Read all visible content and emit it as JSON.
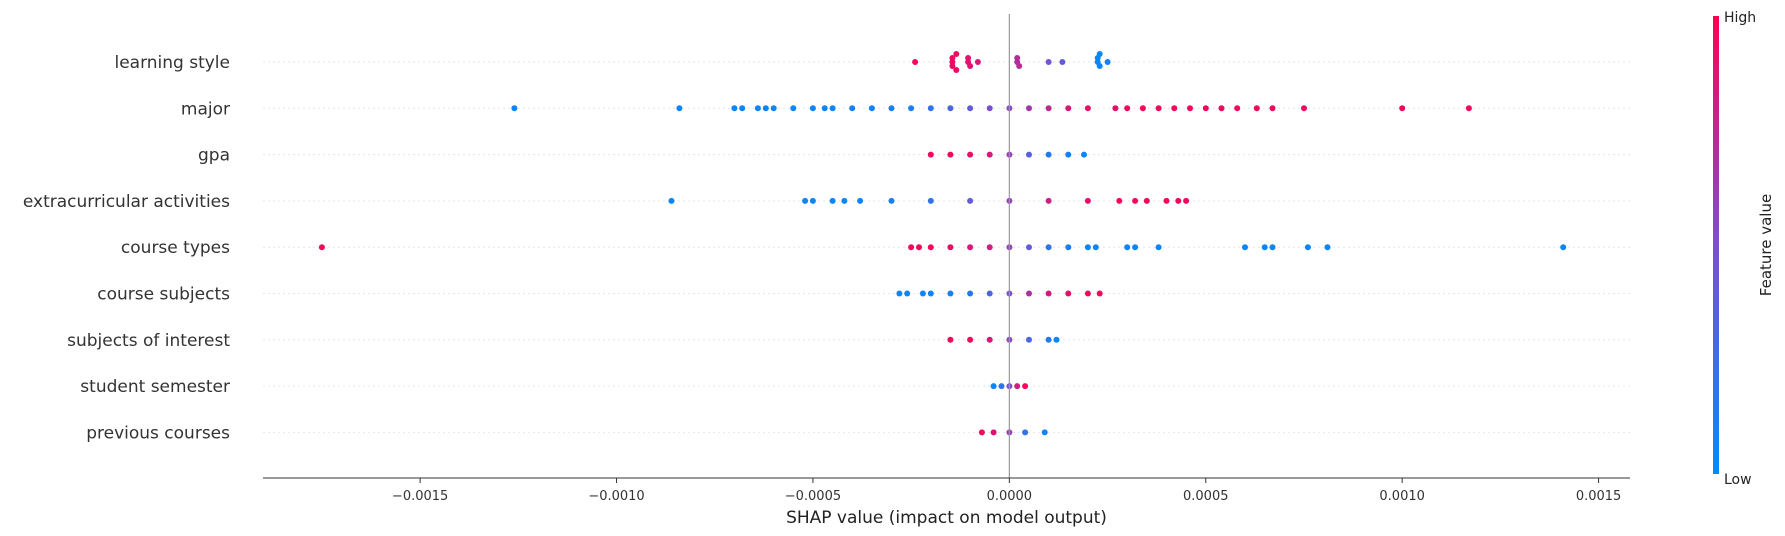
{
  "chart_data": {
    "type": "scatter",
    "subtype": "shap-beeswarm",
    "xlabel": "SHAP value (impact on model output)",
    "xlim": [
      -0.0019,
      0.00158
    ],
    "xticks": [
      -0.0015,
      -0.001,
      -0.0005,
      0.0,
      0.0005,
      0.001,
      0.0015
    ],
    "xtick_labels": [
      "−0.0015",
      "−0.0010",
      "−0.0005",
      "0.0000",
      "0.0005",
      "0.0010",
      "0.0015"
    ],
    "features": [
      "learning style",
      "major",
      "gpa",
      "extracurricular activities",
      "course types",
      "course subjects",
      "subjects of interest",
      "student semester",
      "previous courses"
    ],
    "colorbar": {
      "high_label": "High",
      "low_label": "Low",
      "title": "Feature value",
      "high_color": "#ff0052",
      "low_color": "#008bfb"
    },
    "grid": "horizontal dotted per feature",
    "series": [
      {
        "feature": "learning style",
        "points": [
          {
            "x": -0.00024,
            "v": 0.95
          },
          {
            "x": -0.000145,
            "v": 0.92
          },
          {
            "x": -0.000145,
            "v": 0.92
          },
          {
            "x": -0.000145,
            "v": 0.92
          },
          {
            "x": -0.000135,
            "v": 0.92
          },
          {
            "x": -0.000135,
            "v": 0.92
          },
          {
            "x": -0.000105,
            "v": 0.88
          },
          {
            "x": -0.000105,
            "v": 0.88
          },
          {
            "x": -0.0001,
            "v": 0.88
          },
          {
            "x": -8e-05,
            "v": 0.85
          },
          {
            "x": 2e-05,
            "v": 0.7
          },
          {
            "x": 2e-05,
            "v": 0.7
          },
          {
            "x": 2.5e-05,
            "v": 0.72
          },
          {
            "x": 0.0001,
            "v": 0.45
          },
          {
            "x": 0.000135,
            "v": 0.4
          },
          {
            "x": 0.000225,
            "v": 0.05
          },
          {
            "x": 0.000225,
            "v": 0.05
          },
          {
            "x": 0.00023,
            "v": 0.05
          },
          {
            "x": 0.00023,
            "v": 0.05
          },
          {
            "x": 0.00025,
            "v": 0.08
          }
        ]
      },
      {
        "feature": "major",
        "points": [
          {
            "x": -0.00126,
            "v": 0.05
          },
          {
            "x": -0.00084,
            "v": 0.05
          },
          {
            "x": -0.0007,
            "v": 0.05
          },
          {
            "x": -0.00068,
            "v": 0.05
          },
          {
            "x": -0.00064,
            "v": 0.05
          },
          {
            "x": -0.00062,
            "v": 0.05
          },
          {
            "x": -0.0006,
            "v": 0.05
          },
          {
            "x": -0.00055,
            "v": 0.05
          },
          {
            "x": -0.0005,
            "v": 0.05
          },
          {
            "x": -0.00047,
            "v": 0.05
          },
          {
            "x": -0.00045,
            "v": 0.05
          },
          {
            "x": -0.0004,
            "v": 0.08
          },
          {
            "x": -0.00035,
            "v": 0.08
          },
          {
            "x": -0.0003,
            "v": 0.1
          },
          {
            "x": -0.00025,
            "v": 0.12
          },
          {
            "x": -0.0002,
            "v": 0.2
          },
          {
            "x": -0.00015,
            "v": 0.3
          },
          {
            "x": -0.0001,
            "v": 0.4
          },
          {
            "x": -5e-05,
            "v": 0.5
          },
          {
            "x": 0.0,
            "v": 0.55
          },
          {
            "x": 5e-05,
            "v": 0.65
          },
          {
            "x": 0.0001,
            "v": 0.75
          },
          {
            "x": 0.00015,
            "v": 0.85
          },
          {
            "x": 0.0002,
            "v": 0.9
          },
          {
            "x": 0.00027,
            "v": 0.92
          },
          {
            "x": 0.0003,
            "v": 0.95
          },
          {
            "x": 0.00034,
            "v": 0.95
          },
          {
            "x": 0.00038,
            "v": 0.95
          },
          {
            "x": 0.00042,
            "v": 0.95
          },
          {
            "x": 0.00046,
            "v": 0.95
          },
          {
            "x": 0.0005,
            "v": 0.95
          },
          {
            "x": 0.00054,
            "v": 0.95
          },
          {
            "x": 0.00058,
            "v": 0.95
          },
          {
            "x": 0.00063,
            "v": 0.95
          },
          {
            "x": 0.00067,
            "v": 0.95
          },
          {
            "x": 0.00075,
            "v": 0.95
          },
          {
            "x": 0.001,
            "v": 0.95
          },
          {
            "x": 0.00117,
            "v": 0.95
          }
        ]
      },
      {
        "feature": "gpa",
        "points": [
          {
            "x": -0.0002,
            "v": 0.95
          },
          {
            "x": -0.00015,
            "v": 0.95
          },
          {
            "x": -0.0001,
            "v": 0.92
          },
          {
            "x": -5e-05,
            "v": 0.85
          },
          {
            "x": 0.0,
            "v": 0.6
          },
          {
            "x": 5e-05,
            "v": 0.35
          },
          {
            "x": 0.0001,
            "v": 0.15
          },
          {
            "x": 0.00015,
            "v": 0.08
          },
          {
            "x": 0.00019,
            "v": 0.05
          }
        ]
      },
      {
        "feature": "extracurricular activities",
        "points": [
          {
            "x": -0.00086,
            "v": 0.05
          },
          {
            "x": -0.00052,
            "v": 0.05
          },
          {
            "x": -0.0005,
            "v": 0.05
          },
          {
            "x": -0.00045,
            "v": 0.05
          },
          {
            "x": -0.00042,
            "v": 0.05
          },
          {
            "x": -0.00038,
            "v": 0.05
          },
          {
            "x": -0.0003,
            "v": 0.1
          },
          {
            "x": -0.0002,
            "v": 0.2
          },
          {
            "x": -0.0001,
            "v": 0.4
          },
          {
            "x": 0.0,
            "v": 0.6
          },
          {
            "x": 0.0001,
            "v": 0.8
          },
          {
            "x": 0.0002,
            "v": 0.9
          },
          {
            "x": 0.00028,
            "v": 0.95
          },
          {
            "x": 0.00032,
            "v": 0.95
          },
          {
            "x": 0.00035,
            "v": 0.95
          },
          {
            "x": 0.0004,
            "v": 0.95
          },
          {
            "x": 0.00043,
            "v": 0.95
          },
          {
            "x": 0.00045,
            "v": 0.95
          }
        ]
      },
      {
        "feature": "course types",
        "points": [
          {
            "x": -0.00175,
            "v": 0.95
          },
          {
            "x": -0.00025,
            "v": 0.95
          },
          {
            "x": -0.00023,
            "v": 0.95
          },
          {
            "x": -0.0002,
            "v": 0.95
          },
          {
            "x": -0.00015,
            "v": 0.92
          },
          {
            "x": -0.0001,
            "v": 0.85
          },
          {
            "x": -5e-05,
            "v": 0.8
          },
          {
            "x": 0.0,
            "v": 0.6
          },
          {
            "x": 5e-05,
            "v": 0.4
          },
          {
            "x": 0.0001,
            "v": 0.2
          },
          {
            "x": 0.00015,
            "v": 0.1
          },
          {
            "x": 0.0002,
            "v": 0.05
          },
          {
            "x": 0.00022,
            "v": 0.05
          },
          {
            "x": 0.0003,
            "v": 0.05
          },
          {
            "x": 0.00032,
            "v": 0.05
          },
          {
            "x": 0.00038,
            "v": 0.05
          },
          {
            "x": 0.0006,
            "v": 0.05
          },
          {
            "x": 0.00065,
            "v": 0.05
          },
          {
            "x": 0.00067,
            "v": 0.05
          },
          {
            "x": 0.00076,
            "v": 0.05
          },
          {
            "x": 0.00081,
            "v": 0.05
          },
          {
            "x": 0.00141,
            "v": 0.05
          }
        ]
      },
      {
        "feature": "course subjects",
        "points": [
          {
            "x": -0.00028,
            "v": 0.05
          },
          {
            "x": -0.00026,
            "v": 0.05
          },
          {
            "x": -0.00022,
            "v": 0.05
          },
          {
            "x": -0.0002,
            "v": 0.05
          },
          {
            "x": -0.00015,
            "v": 0.1
          },
          {
            "x": -0.0001,
            "v": 0.15
          },
          {
            "x": -5e-05,
            "v": 0.3
          },
          {
            "x": 0.0,
            "v": 0.5
          },
          {
            "x": 5e-05,
            "v": 0.7
          },
          {
            "x": 0.0001,
            "v": 0.85
          },
          {
            "x": 0.00015,
            "v": 0.9
          },
          {
            "x": 0.0002,
            "v": 0.95
          },
          {
            "x": 0.00023,
            "v": 0.95
          }
        ]
      },
      {
        "feature": "subjects of interest",
        "points": [
          {
            "x": -0.00015,
            "v": 0.95
          },
          {
            "x": -0.0001,
            "v": 0.95
          },
          {
            "x": -5e-05,
            "v": 0.85
          },
          {
            "x": 0.0,
            "v": 0.55
          },
          {
            "x": 5e-05,
            "v": 0.3
          },
          {
            "x": 0.0001,
            "v": 0.15
          },
          {
            "x": 0.00012,
            "v": 0.05
          }
        ]
      },
      {
        "feature": "student semester",
        "points": [
          {
            "x": -4e-05,
            "v": 0.05
          },
          {
            "x": -2e-05,
            "v": 0.2
          },
          {
            "x": 0.0,
            "v": 0.5
          },
          {
            "x": 2e-05,
            "v": 0.8
          },
          {
            "x": 4e-05,
            "v": 0.95
          }
        ]
      },
      {
        "feature": "previous courses",
        "points": [
          {
            "x": -7e-05,
            "v": 0.95
          },
          {
            "x": -4e-05,
            "v": 0.9
          },
          {
            "x": 0.0,
            "v": 0.6
          },
          {
            "x": 4e-05,
            "v": 0.2
          },
          {
            "x": 9e-05,
            "v": 0.05
          }
        ]
      }
    ]
  }
}
